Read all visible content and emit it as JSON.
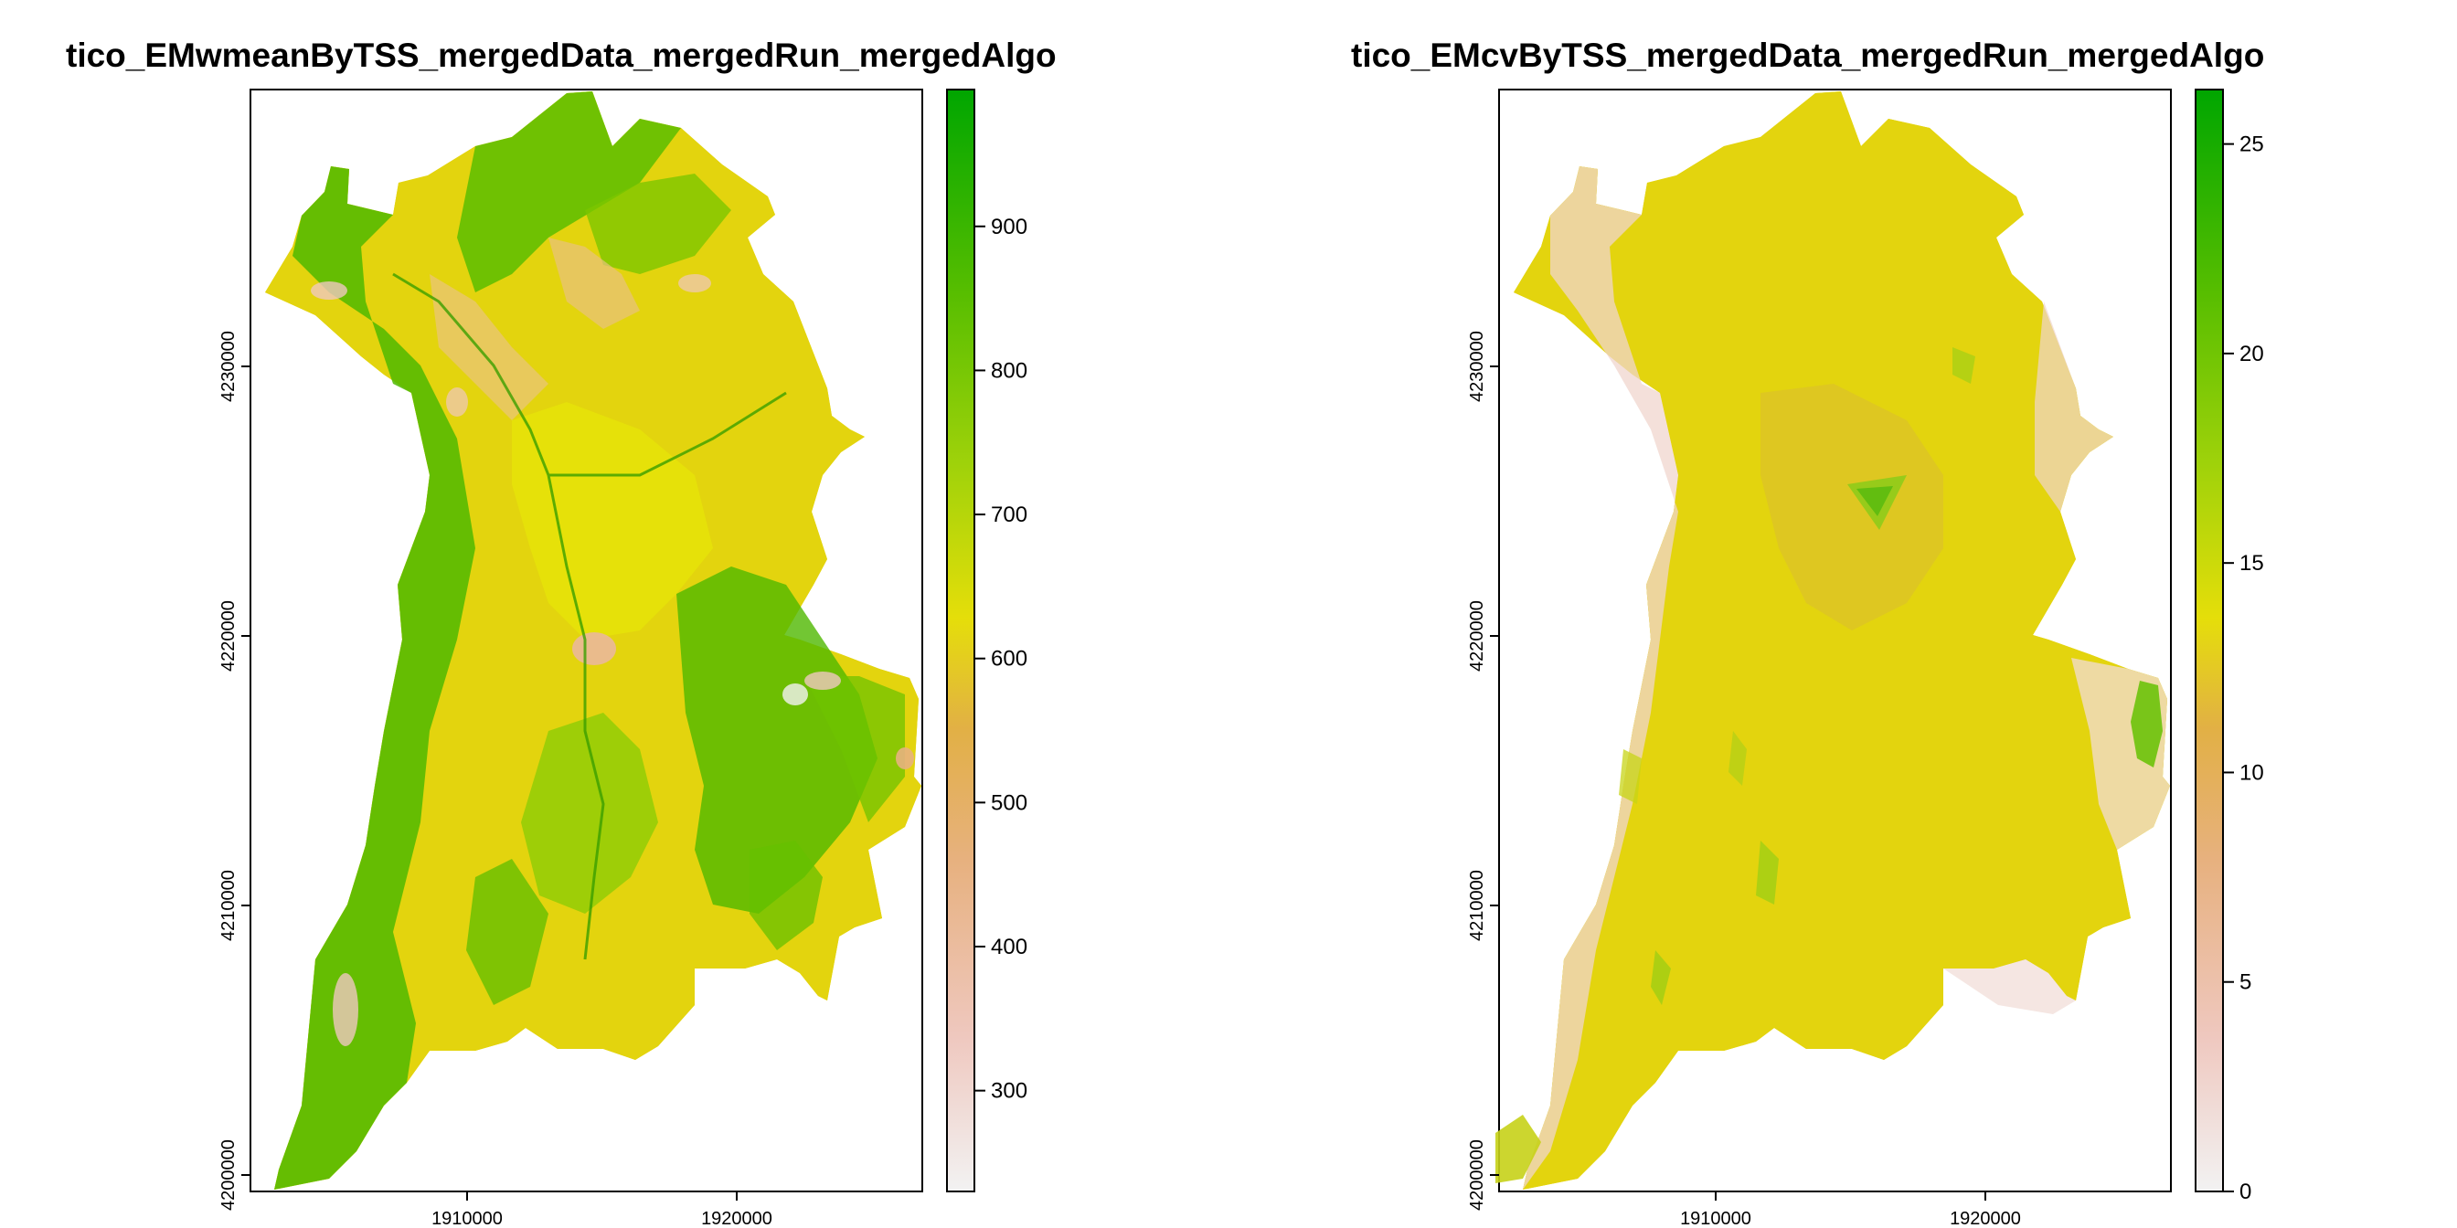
{
  "colors": {
    "ramp": [
      "#f2f2f2",
      "#efc8bf",
      "#e7b17f",
      "#e2b045",
      "#e5de0a",
      "#9fd20a",
      "#55bd00",
      "#00a600"
    ],
    "frame": "#000000",
    "background": "#ffffff"
  },
  "panels": [
    {
      "title": "tico_EMwmeanByTSS_mergedData_mergedRun_mergedAlgo",
      "x_ticks": [
        "1910000",
        "1920000"
      ],
      "y_ticks": [
        "4200000",
        "4210000",
        "4220000",
        "4230000"
      ],
      "legend": {
        "min": 230,
        "max": 995,
        "ticks": [
          "300",
          "400",
          "500",
          "600",
          "700",
          "800",
          "900"
        ]
      }
    },
    {
      "title": "tico_EMcvByTSS_mergedData_mergedRun_mergedAlgo",
      "x_ticks": [
        "1910000",
        "1920000"
      ],
      "y_ticks": [
        "4200000",
        "4210000",
        "4220000",
        "4230000"
      ],
      "legend": {
        "min": 0,
        "max": 26.3,
        "ticks": [
          "0",
          "5",
          "10",
          "15",
          "20",
          "25"
        ]
      }
    }
  ]
}
